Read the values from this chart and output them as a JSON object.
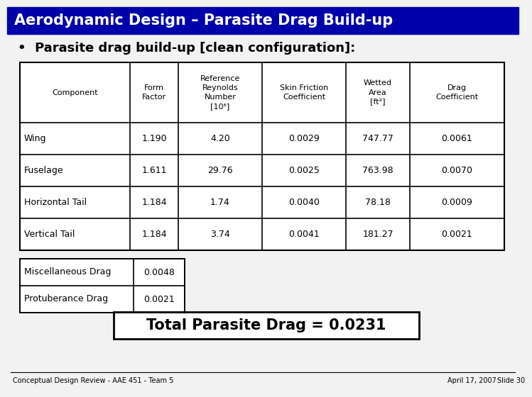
{
  "title": "Aerodynamic Design – Parasite Drag Build-up",
  "subtitle": "•  Parasite drag build-up [clean configuration]:",
  "header_bg": "#0000aa",
  "header_text_color": "#ffffff",
  "bg_color": "#f2f2f2",
  "main_table": {
    "col_headers": [
      "Component",
      "Form\nFactor",
      "Reference\nReynolds\nNumber\n[10⁶]",
      "Skin Friction\nCoefficient",
      "Wetted\nArea\n[ft²]",
      "Drag\nCoefficient"
    ],
    "rows": [
      [
        "Wing",
        "1.190",
        "4.20",
        "0.0029",
        "747.77",
        "0.0061"
      ],
      [
        "Fuselage",
        "1.611",
        "29.76",
        "0.0025",
        "763.98",
        "0.0070"
      ],
      [
        "Horizontal Tail",
        "1.184",
        "1.74",
        "0.0040",
        "78.18",
        "0.0009"
      ],
      [
        "Vertical Tail",
        "1.184",
        "3.74",
        "0.0041",
        "181.27",
        "0.0021"
      ]
    ]
  },
  "misc_table": {
    "rows": [
      [
        "Miscellaneous Drag",
        "0.0048"
      ],
      [
        "Protuberance Drag",
        "0.0021"
      ]
    ]
  },
  "total_text": "Total Parasite Drag = 0.0231",
  "footer_left": "Conceptual Design Review - AAE 451 - Team 5",
  "footer_right_date": "April 17, 2007",
  "footer_right_slide": "Slide 30"
}
